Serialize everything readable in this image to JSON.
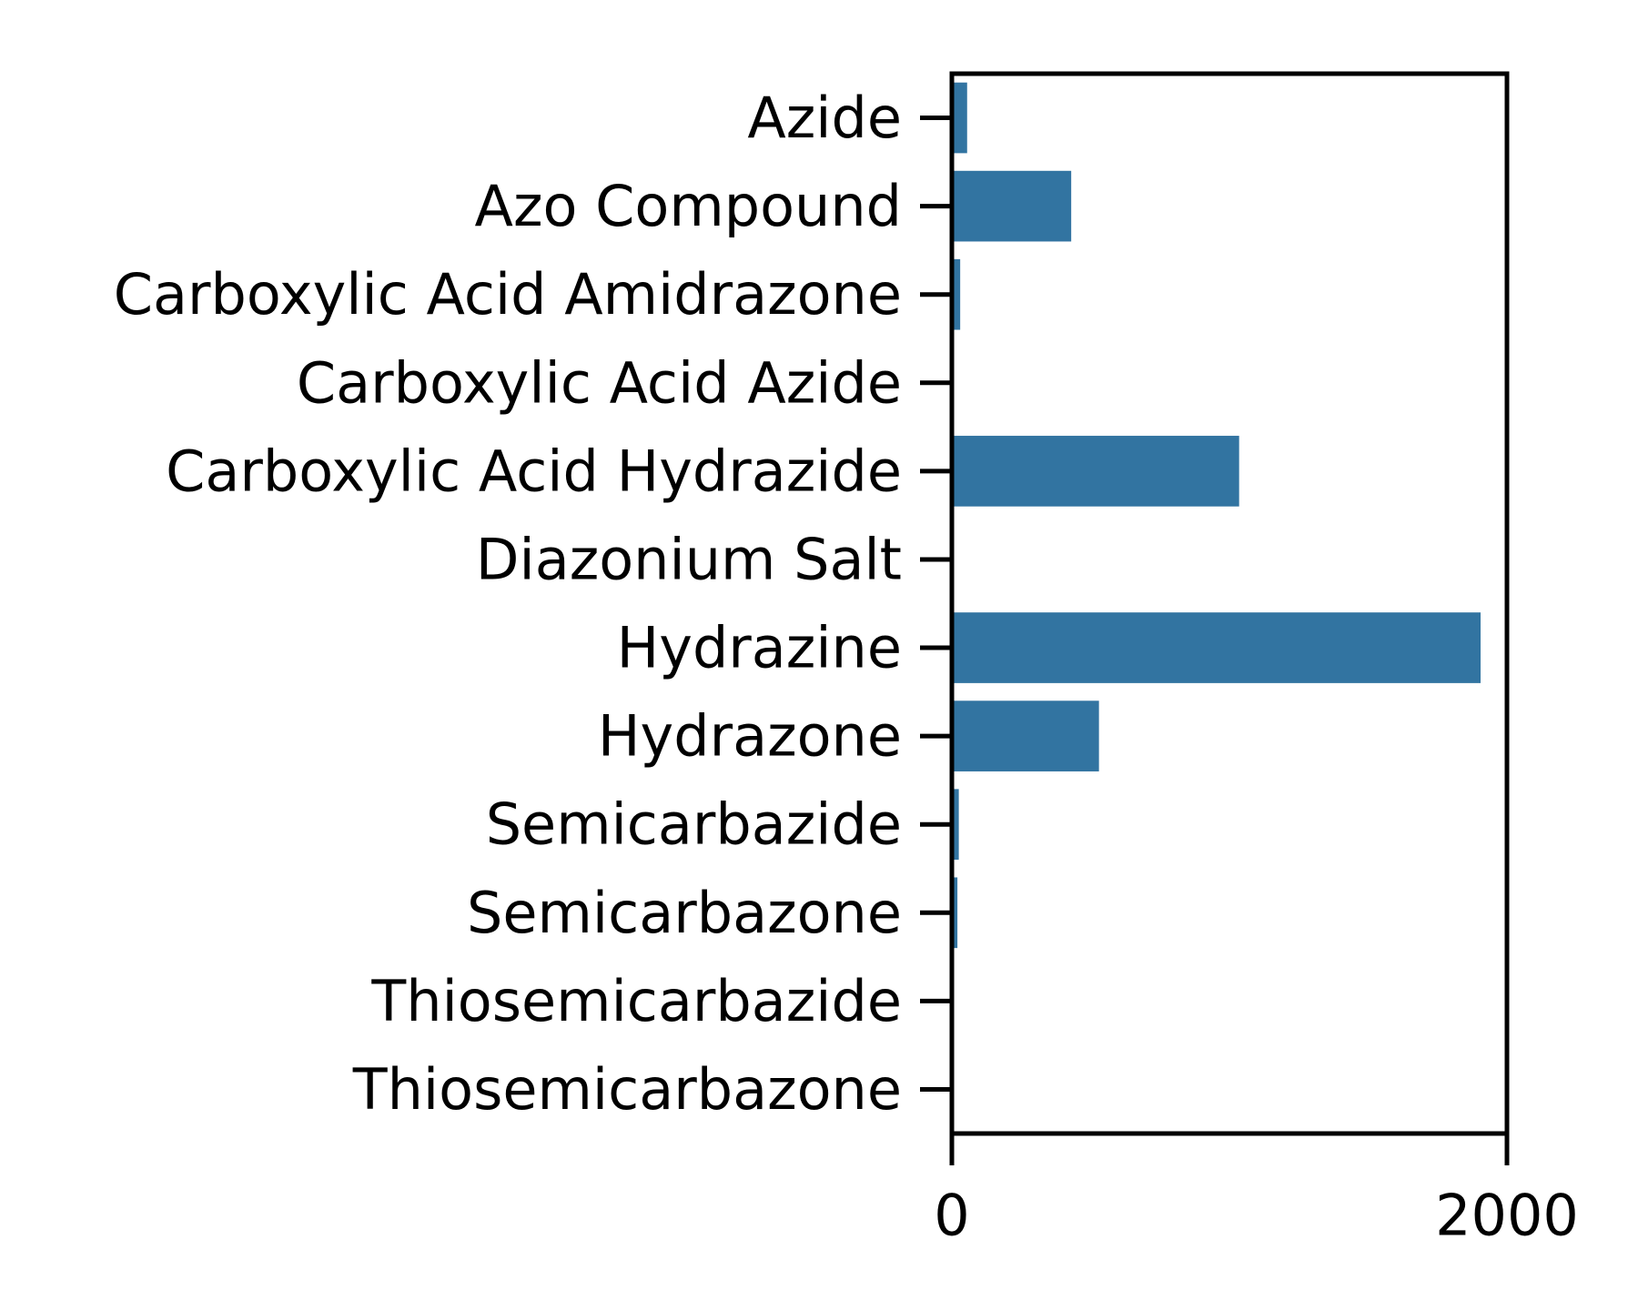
{
  "chart_data": {
    "type": "bar",
    "orientation": "horizontal",
    "title": "",
    "xlabel": "",
    "ylabel": "",
    "categories": [
      "Azide",
      "Azo Compound",
      "Carboxylic Acid Amidrazone",
      "Carboxylic Acid Azide",
      "Carboxylic Acid Hydrazide",
      "Diazonium Salt",
      "Hydrazine",
      "Hydrazone",
      "Semicarbazide",
      "Semicarbazone",
      "Thiosemicarbazide",
      "Thiosemicarbazone"
    ],
    "values": [
      55,
      430,
      30,
      0,
      1035,
      0,
      1905,
      530,
      25,
      20,
      0,
      0
    ],
    "xlim": [
      0,
      2000
    ],
    "xticks": [
      0,
      2000
    ],
    "xtick_labels": [
      "0",
      "2000"
    ],
    "grid": false,
    "legend": "none",
    "bar_color": "#3274a1"
  }
}
